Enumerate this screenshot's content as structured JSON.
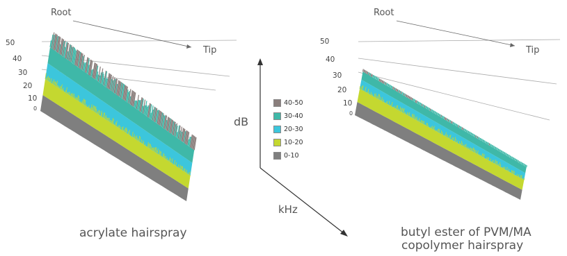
{
  "chart_data": [
    {
      "type": "area",
      "title": "acrylate hairspray",
      "axis_labels": {
        "root": "Root",
        "tip": "Tip"
      },
      "yticks": [
        "50",
        "40",
        "30",
        "20",
        "10",
        "0"
      ],
      "levels": {
        "gray": 10,
        "yellow": 20,
        "cyan": 30,
        "teal": 40,
        "max": 50
      }
    },
    {
      "type": "area",
      "title": "butyl ester of PVM/MA copolymer  hairspray",
      "title_lines": [
        "butyl ester of PVM/MA",
        "copolymer  hairspray"
      ],
      "axis_labels": {
        "root": "Root",
        "tip": "Tip"
      },
      "yticks": [
        "50",
        "40",
        "30",
        "20",
        "10",
        "0"
      ],
      "levels": {
        "gray": 10,
        "yellow": 20,
        "cyan": 27,
        "teal": 33,
        "max": 35
      }
    }
  ],
  "legend": {
    "items": [
      {
        "label": "40-50",
        "color": "#8a7e7c"
      },
      {
        "label": "30-40",
        "color": "#3fb8a8"
      },
      {
        "label": "20-30",
        "color": "#3cc6dc"
      },
      {
        "label": "10-20",
        "color": "#c4d830"
      },
      {
        "label": "0-10",
        "color": "#7f7f7f"
      }
    ]
  },
  "axes": {
    "db_label": "dB",
    "khz_label": "kHz"
  }
}
